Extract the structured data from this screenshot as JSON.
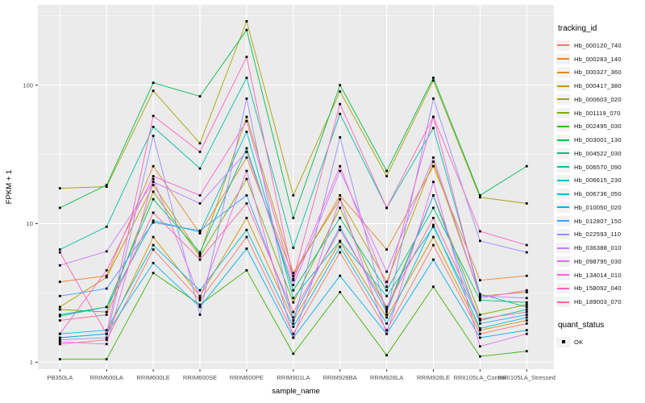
{
  "figure": {
    "background": "#FFFFFF"
  },
  "chart_data": {
    "type": "line",
    "title": "",
    "xlabel": "sample_name",
    "ylabel": "FPKM + 1",
    "y_scale": "log10",
    "grid": true,
    "legend_position": "right",
    "panel_background": "#EBEBEB",
    "gridline_color": "#FFFFFF",
    "axis_text_color": "#4D4D4D",
    "tick_mark_color": "#333333",
    "point_color": "#000000",
    "point_shape": "filled-square",
    "ylim": [
      0.89,
      380
    ],
    "y_tick_labels": [
      "1",
      "10",
      "100"
    ],
    "y_tick_values": [
      1,
      10,
      100
    ],
    "y_minor_tick_values": [
      3.162,
      31.62,
      316.2
    ],
    "categories": [
      "PB350LA",
      "RRIM600LA",
      "RRIM600LE",
      "RRIM600SE",
      "RRIM600PE",
      "RRIM901LA",
      "RRIM928BA",
      "RRIM928LA",
      "RRIM928LE",
      "RRII105LA_Control",
      "RRII105LA_Stressed"
    ],
    "series": [
      {
        "name": "Hb_000120_740",
        "color": "#F8766D",
        "values": [
          1.35,
          1.45,
          6.5,
          2.8,
          8.0,
          1.6,
          6.2,
          1.7,
          7.0,
          1.6,
          1.9
        ]
      },
      {
        "name": "Hb_000283_140",
        "color": "#EA8331",
        "values": [
          3.8,
          4.2,
          26,
          8.5,
          30,
          4.2,
          16,
          6.5,
          26,
          3.9,
          4.2
        ]
      },
      {
        "name": "Hb_000327_360",
        "color": "#D89000",
        "values": [
          1.5,
          1.6,
          8.0,
          3.0,
          11,
          2.0,
          7.4,
          2.1,
          8.0,
          1.7,
          2.0
        ]
      },
      {
        "name": "Hb_000417_380",
        "color": "#C09B00",
        "values": [
          2.5,
          4.1,
          19,
          6.0,
          59,
          4.4,
          15,
          3.8,
          28,
          3.0,
          3.2
        ]
      },
      {
        "name": "Hb_000603_020",
        "color": "#A3A500",
        "values": [
          18,
          18.5,
          91,
          38,
          289,
          16,
          90,
          22,
          108,
          15.5,
          14
        ]
      },
      {
        "name": "Hb_001119_070",
        "color": "#7CAE00",
        "values": [
          2.4,
          2.3,
          17,
          5.8,
          21,
          2.7,
          13,
          2.4,
          16,
          2.2,
          2.6
        ]
      },
      {
        "name": "Hb_002495_030",
        "color": "#39B600",
        "values": [
          1.05,
          1.05,
          4.4,
          2.6,
          4.6,
          1.15,
          3.2,
          1.12,
          3.5,
          1.1,
          1.2
        ]
      },
      {
        "name": "Hb_003001_130",
        "color": "#00BB4E",
        "values": [
          13,
          19,
          104,
          83,
          250,
          11,
          100,
          24,
          113,
          16,
          26
        ]
      },
      {
        "name": "Hb_004522_030",
        "color": "#00BF7D",
        "values": [
          2.15,
          2.5,
          15,
          6.2,
          35,
          3.3,
          11,
          3.3,
          13,
          2.8,
          2.7
        ]
      },
      {
        "name": "Hb_006570_090",
        "color": "#00C1A3",
        "values": [
          6.5,
          9.5,
          50,
          25,
          113,
          6.7,
          62,
          13,
          49,
          3.1,
          2.5
        ]
      },
      {
        "name": "Hb_006615_230",
        "color": "#00BFC4",
        "values": [
          2.2,
          2.5,
          10.5,
          8.7,
          46,
          2.9,
          7.5,
          3.0,
          9.5,
          2.0,
          2.4
        ]
      },
      {
        "name": "Hb_006736_050",
        "color": "#00BAE0",
        "values": [
          1.6,
          1.7,
          7.0,
          3.3,
          9.0,
          1.8,
          6.8,
          1.9,
          9.8,
          1.75,
          2.1
        ]
      },
      {
        "name": "Hb_010050_020",
        "color": "#00B0F6",
        "values": [
          1.5,
          1.6,
          5.2,
          2.5,
          6.6,
          1.5,
          4.2,
          1.6,
          5.5,
          1.5,
          1.7
        ]
      },
      {
        "name": "Hb_012807_150",
        "color": "#35A2FF",
        "values": [
          3.0,
          3.4,
          10.2,
          8.9,
          16,
          2.1,
          9.5,
          2.3,
          16,
          1.9,
          2.2
        ]
      },
      {
        "name": "Hb_022593_110",
        "color": "#9590FF",
        "values": [
          1.45,
          1.5,
          43,
          2.2,
          80,
          1.9,
          42,
          2.2,
          80,
          7.5,
          6.2
        ]
      },
      {
        "name": "Hb_036388_010",
        "color": "#C77CFF",
        "values": [
          5.0,
          6.3,
          20,
          14,
          33,
          3.6,
          24,
          4.5,
          30,
          3.0,
          2.9
        ]
      },
      {
        "name": "Hb_098795_030",
        "color": "#E76BF3",
        "values": [
          1.4,
          1.35,
          21,
          2.9,
          24,
          1.5,
          15,
          1.6,
          20,
          1.3,
          1.6
        ]
      },
      {
        "name": "Hb_134014_010",
        "color": "#FA62DB",
        "values": [
          1.6,
          4.6,
          22,
          16,
          55,
          3.9,
          26,
          3.5,
          59,
          2.9,
          3.3
        ]
      },
      {
        "name": "Hb_158092_040",
        "color": "#FF62BC",
        "values": [
          6.2,
          1.6,
          60,
          33,
          160,
          4.0,
          73,
          13,
          59,
          8.8,
          7.0
        ]
      },
      {
        "name": "Hb_189003_070",
        "color": "#FF6A98",
        "values": [
          2.0,
          2.2,
          12,
          5.5,
          14,
          2.3,
          9.0,
          2.5,
          11,
          2.05,
          2.3
        ]
      }
    ],
    "legend": {
      "title": "tracking_id"
    },
    "quant_legend": {
      "title": "quant_status",
      "items": [
        {
          "label": "OK",
          "marker": "filled-square",
          "color": "#000000"
        }
      ]
    }
  }
}
